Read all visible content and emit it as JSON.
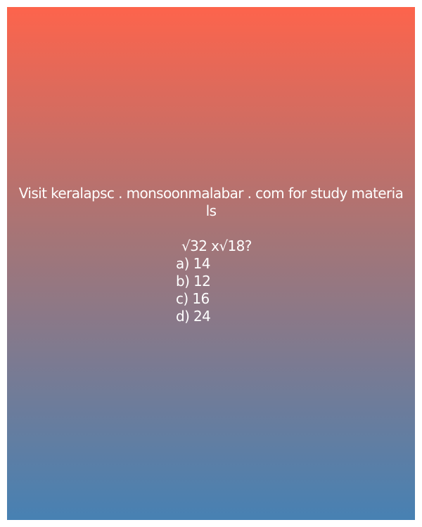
{
  "promo": {
    "line1": "Visit keralapsc . monsoonmalabar . com for study materia",
    "line2": "ls"
  },
  "quiz": {
    "question": "√32 x√18?",
    "options": [
      "a) 14",
      "b) 12",
      "c) 16",
      "d) 24"
    ]
  },
  "colors": {
    "gradient_top": "#fd644c",
    "gradient_middle": "#a57577",
    "gradient_bottom": "#4781b3",
    "text": "#ffffff"
  }
}
